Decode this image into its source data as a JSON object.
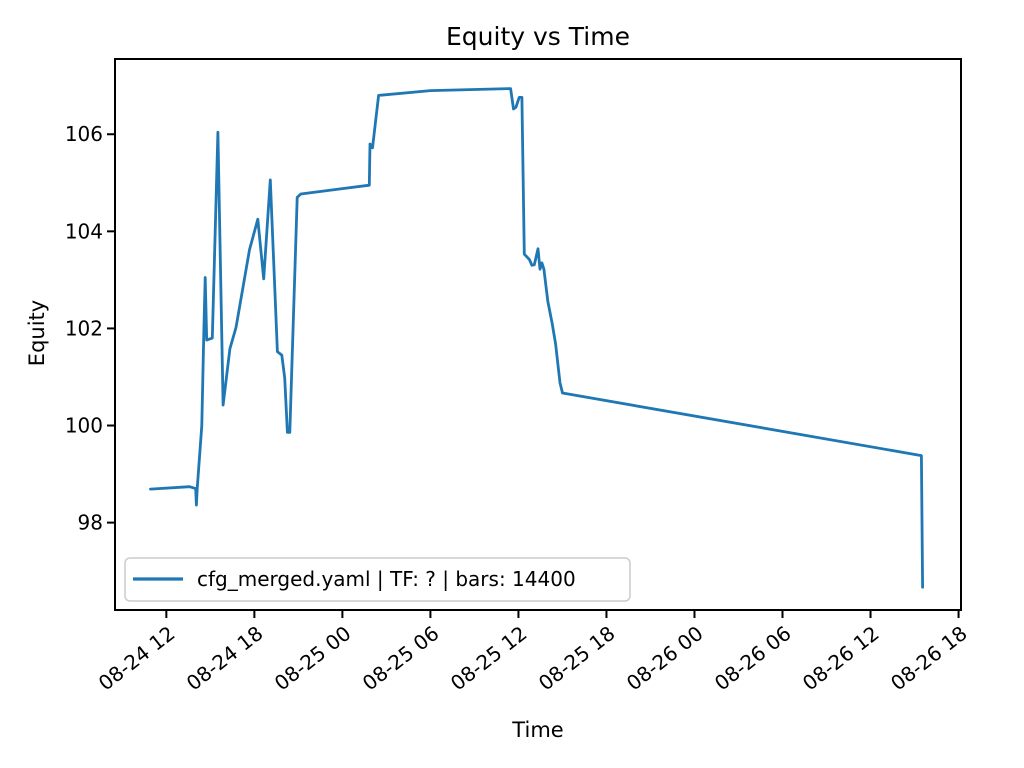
{
  "chart_data": {
    "type": "line",
    "title": "Equity vs Time",
    "xlabel": "Time",
    "ylabel": "Equity",
    "grid": false,
    "background_color": "#ffffff",
    "line_color": "#1f77b4",
    "spine_color": "#000000",
    "legend": {
      "label": "cfg_merged.yaml | TF: ? | bars: 14400",
      "position": "lower left",
      "border_color": "#cccccc"
    },
    "x_ticks": [
      "08-24 12",
      "08-24 18",
      "08-25 00",
      "08-25 06",
      "08-25 12",
      "08-25 18",
      "08-26 00",
      "08-26 06",
      "08-26 12",
      "08-26 18"
    ],
    "y_ticks": [
      98,
      100,
      102,
      104,
      106
    ],
    "xlim": [
      "08-24 08:30",
      "08-26 18:10"
    ],
    "ylim": [
      96.2,
      107.55
    ],
    "series": [
      {
        "name": "cfg_merged.yaml | TF: ? | bars: 14400",
        "points": [
          [
            "08-24 10:55",
            98.69
          ],
          [
            "08-24 13:35",
            98.74
          ],
          [
            "08-24 14:00",
            98.7
          ],
          [
            "08-24 14:03",
            98.36
          ],
          [
            "08-24 14:06",
            98.7
          ],
          [
            "08-24 14:25",
            100.0
          ],
          [
            "08-24 14:33",
            101.9
          ],
          [
            "08-24 14:39",
            103.05
          ],
          [
            "08-24 14:45",
            101.76
          ],
          [
            "08-24 15:08",
            101.8
          ],
          [
            "08-24 15:31",
            106.04
          ],
          [
            "08-24 15:52",
            100.42
          ],
          [
            "08-24 16:20",
            101.58
          ],
          [
            "08-24 16:45",
            102.02
          ],
          [
            "08-24 17:40",
            103.62
          ],
          [
            "08-24 18:14",
            104.25
          ],
          [
            "08-24 18:38",
            103.02
          ],
          [
            "08-24 19:05",
            105.06
          ],
          [
            "08-24 19:34",
            101.52
          ],
          [
            "08-24 19:52",
            101.45
          ],
          [
            "08-24 20:04",
            100.98
          ],
          [
            "08-24 20:15",
            99.86
          ],
          [
            "08-24 20:25",
            99.86
          ],
          [
            "08-24 20:55",
            104.7
          ],
          [
            "08-24 21:10",
            104.77
          ],
          [
            "08-25 00:00",
            104.88
          ],
          [
            "08-25 01:50",
            104.95
          ],
          [
            "08-25 01:53",
            105.8
          ],
          [
            "08-25 02:03",
            105.72
          ],
          [
            "08-25 02:28",
            106.8
          ],
          [
            "08-25 06:00",
            106.9
          ],
          [
            "08-25 11:28",
            106.94
          ],
          [
            "08-25 11:40",
            106.52
          ],
          [
            "08-25 11:50",
            106.56
          ],
          [
            "08-25 12:03",
            106.76
          ],
          [
            "08-25 12:14",
            106.76
          ],
          [
            "08-25 12:24",
            103.53
          ],
          [
            "08-25 12:45",
            103.42
          ],
          [
            "08-25 12:55",
            103.3
          ],
          [
            "08-25 13:05",
            103.31
          ],
          [
            "08-25 13:20",
            103.64
          ],
          [
            "08-25 13:28",
            103.22
          ],
          [
            "08-25 13:36",
            103.35
          ],
          [
            "08-25 13:44",
            103.22
          ],
          [
            "08-25 14:00",
            102.56
          ],
          [
            "08-25 14:18",
            102.1
          ],
          [
            "08-25 14:32",
            101.68
          ],
          [
            "08-25 14:50",
            100.88
          ],
          [
            "08-25 15:00",
            100.67
          ],
          [
            "08-26 15:28",
            99.38
          ],
          [
            "08-26 15:33",
            96.67
          ]
        ]
      }
    ]
  }
}
